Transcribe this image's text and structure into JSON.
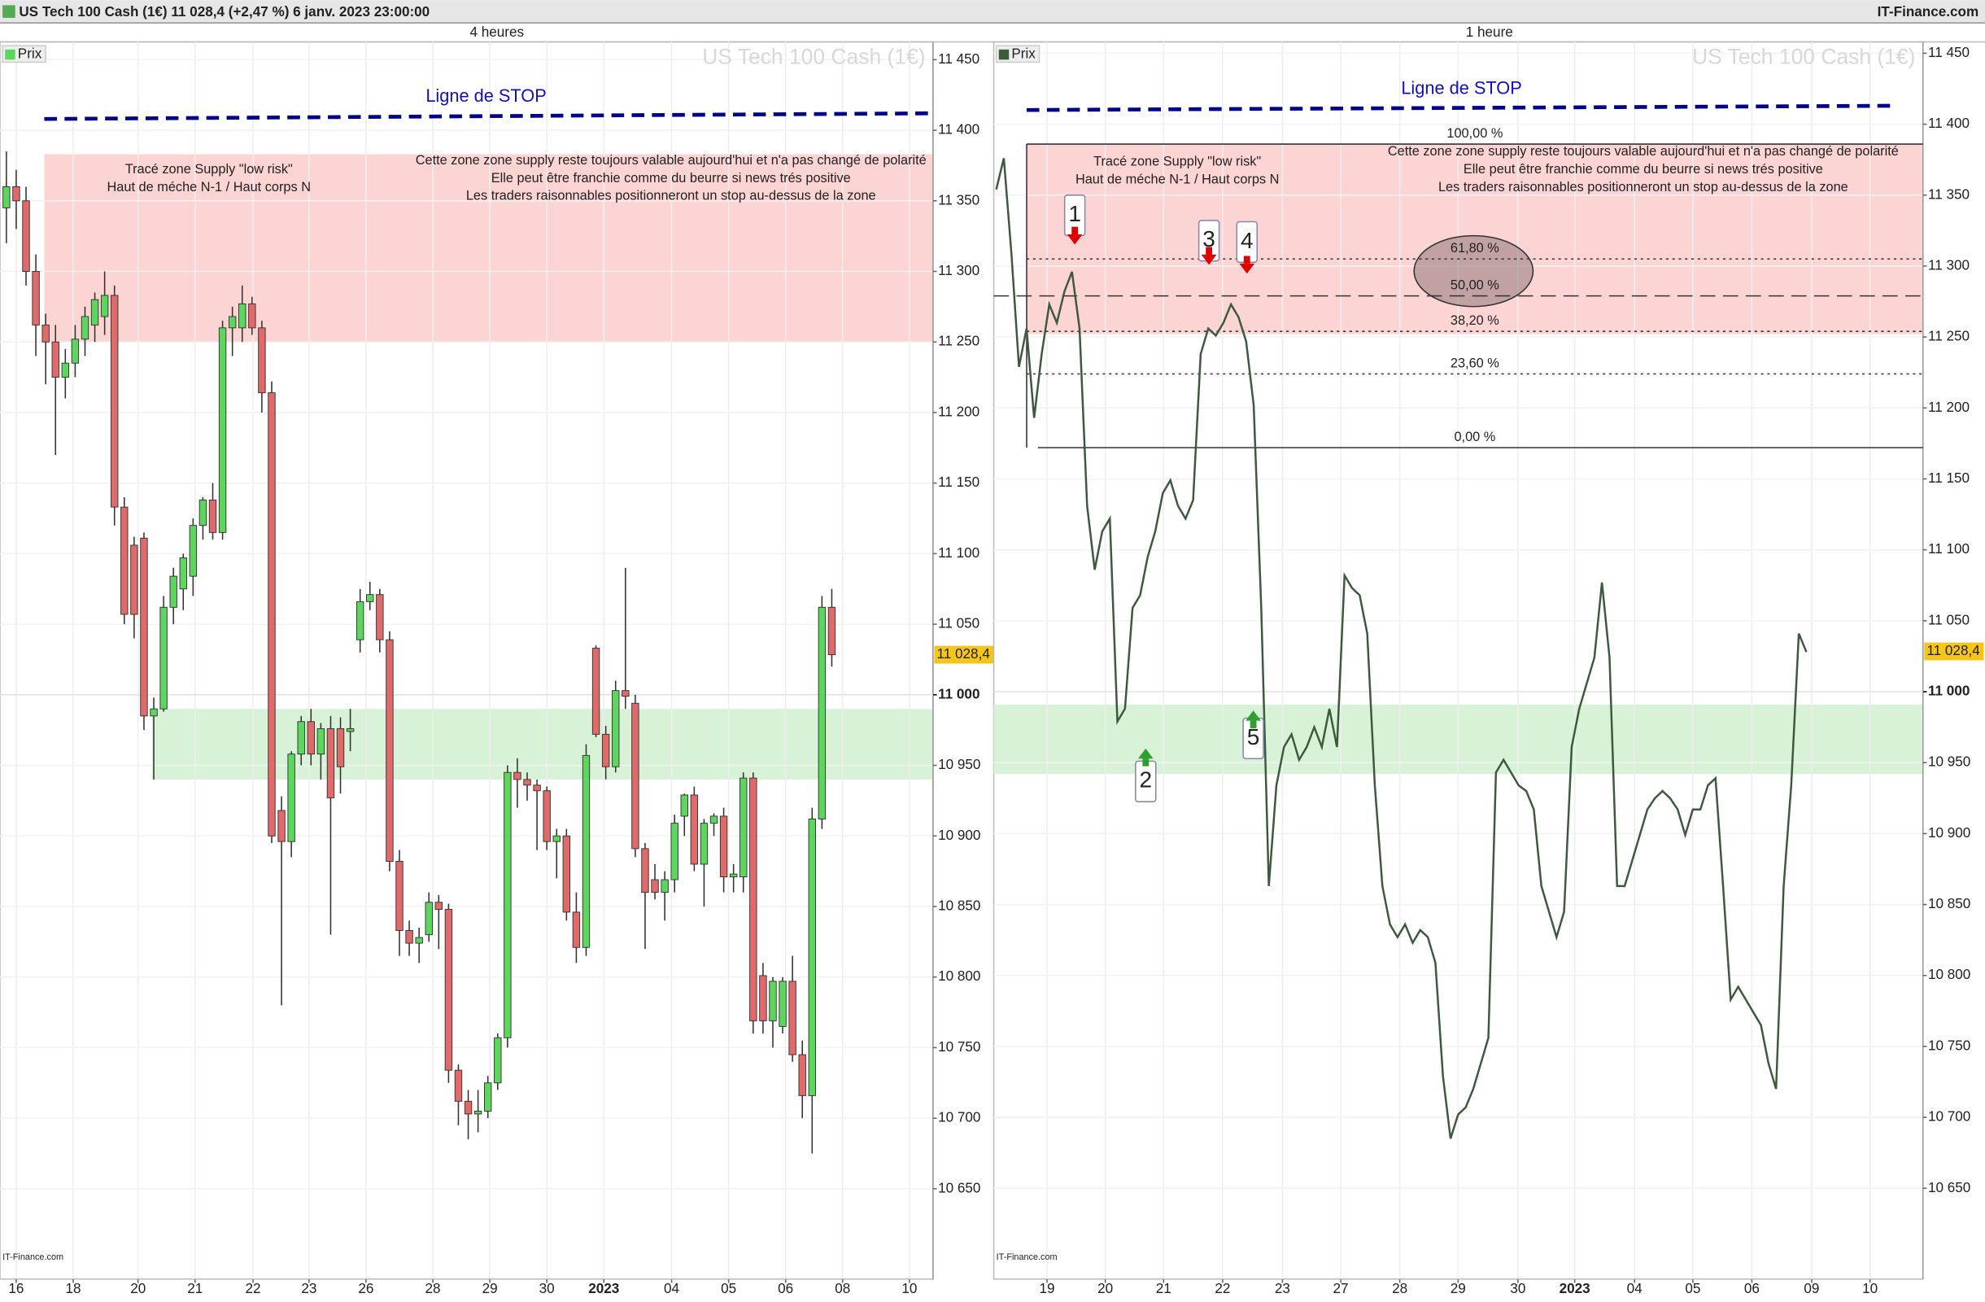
{
  "header": {
    "title": "US Tech 100 Cash (1€) 11 028,4 (+2,47 %) 6 janv. 2023 23:00:00",
    "brand": "IT-Finance.com"
  },
  "charts": [
    {
      "type": "candlestick",
      "timeframe": "4 heures",
      "legend": "Prix",
      "watermark": "US Tech 100 Cash (1€)",
      "source": "IT-Finance.com",
      "up_color": "#5cd65c",
      "down_color": "#e06a6a",
      "grid": true,
      "ylim": [
        10586,
        11462.6
      ],
      "yticks": [
        {
          "value": 11450,
          "label": "11 450"
        },
        {
          "value": 11400,
          "label": "11 400"
        },
        {
          "value": 11350,
          "label": "11 350"
        },
        {
          "value": 11300,
          "label": "11 300"
        },
        {
          "value": 11250,
          "label": "11 250"
        },
        {
          "value": 11200,
          "label": "11 200"
        },
        {
          "value": 11150,
          "label": "11 150"
        },
        {
          "value": 11100,
          "label": "11 100"
        },
        {
          "value": 11050,
          "label": "11 050"
        },
        {
          "value": 10950,
          "label": "10 950"
        },
        {
          "value": 10900,
          "label": "10 900"
        },
        {
          "value": 10850,
          "label": "10 850"
        },
        {
          "value": 10800,
          "label": "10 800"
        },
        {
          "value": 10750,
          "label": "10 750"
        },
        {
          "value": 10700,
          "label": "10 700"
        },
        {
          "value": 10650,
          "label": "10 650"
        }
      ],
      "reference_level": {
        "value": 11000,
        "label": "11 000"
      },
      "last_price": {
        "value": 11028.4,
        "label": "11 028,4"
      },
      "xlim": [
        -0.65,
        94.3
      ],
      "xticks": [
        {
          "value": 1,
          "label": "16"
        },
        {
          "value": 6.8,
          "label": "18"
        },
        {
          "value": 13.4,
          "label": "20"
        },
        {
          "value": 19.2,
          "label": "21"
        },
        {
          "value": 25.1,
          "label": "22"
        },
        {
          "value": 30.8,
          "label": "23"
        },
        {
          "value": 36.6,
          "label": "26"
        },
        {
          "value": 43.4,
          "label": "28"
        },
        {
          "value": 49.2,
          "label": "29"
        },
        {
          "value": 55,
          "label": "30"
        },
        {
          "value": 60.8,
          "label": "2023"
        },
        {
          "value": 67.7,
          "label": "04"
        },
        {
          "value": 73.5,
          "label": "05"
        },
        {
          "value": 79.3,
          "label": "06"
        },
        {
          "value": 85.1,
          "label": "08"
        },
        {
          "value": 91.9,
          "label": "10"
        }
      ],
      "supply_zone": [
        11250,
        11383
      ],
      "demand_zone": [
        10940,
        10990
      ],
      "stop_line": {
        "label": "Ligne de STOP",
        "values": [
          11408,
          11412
        ]
      },
      "notes": [
        [
          "Tracé zone Supply \"low risk\"",
          "Haut de méche N-1 / Haut corps N"
        ],
        [
          "Cette zone zone supply reste toujours valable aujourd'hui et n'a pas changé de polarité",
          "Elle peut être franchie comme du beurre si news trés positive",
          "Les traders raisonnables positionneront un stop au-dessus de la zone"
        ]
      ],
      "ohlc": [
        [
          11345,
          11385,
          11320,
          11360
        ],
        [
          11360,
          11372,
          11330,
          11350
        ],
        [
          11350,
          11360,
          11290,
          11300
        ],
        [
          11300,
          11312,
          11240,
          11262
        ],
        [
          11262,
          11270,
          11220,
          11250
        ],
        [
          11250,
          11262,
          11170,
          11225
        ],
        [
          11225,
          11245,
          11210,
          11235
        ],
        [
          11235,
          11262,
          11225,
          11252
        ],
        [
          11252,
          11275,
          11240,
          11268
        ],
        [
          11262,
          11285,
          11250,
          11280
        ],
        [
          11268,
          11300,
          11255,
          11283
        ],
        [
          11283,
          11290,
          11120,
          11133
        ],
        [
          11133,
          11140,
          11050,
          11057
        ],
        [
          11106,
          11112,
          11040,
          11057
        ],
        [
          11111,
          11115,
          10975,
          10985
        ],
        [
          10985,
          10998,
          10940,
          10990
        ],
        [
          10990,
          11070,
          10988,
          11062
        ],
        [
          11062,
          11090,
          11050,
          11084
        ],
        [
          11075,
          11100,
          11060,
          11097
        ],
        [
          11084,
          11125,
          11070,
          11120
        ],
        [
          11120,
          11140,
          11110,
          11138
        ],
        [
          11138,
          11150,
          11110,
          11115
        ],
        [
          11115,
          11265,
          11110,
          11260
        ],
        [
          11260,
          11275,
          11240,
          11268
        ],
        [
          11260,
          11290,
          11250,
          11277
        ],
        [
          11277,
          11282,
          11255,
          11260
        ],
        [
          11260,
          11265,
          11200,
          11214
        ],
        [
          11214,
          11222,
          10895,
          10900
        ],
        [
          10918,
          10928,
          10780,
          10896
        ],
        [
          10896,
          10960,
          10885,
          10958
        ],
        [
          10958,
          10985,
          10950,
          10981
        ],
        [
          10981,
          10990,
          10950,
          10958
        ],
        [
          10958,
          10980,
          10940,
          10976
        ],
        [
          10976,
          10985,
          10830,
          10927
        ],
        [
          10976,
          10984,
          10930,
          10949
        ],
        [
          10974,
          10990,
          10960,
          10976
        ],
        [
          11039,
          11075,
          11030,
          11066
        ],
        [
          11066,
          11080,
          11060,
          11071
        ],
        [
          11071,
          11075,
          11030,
          11039
        ],
        [
          11039,
          11045,
          10875,
          10882
        ],
        [
          10882,
          10890,
          10815,
          10833
        ],
        [
          10833,
          10840,
          10815,
          10824
        ],
        [
          10824,
          10835,
          10810,
          10828
        ],
        [
          10830,
          10860,
          10825,
          10853
        ],
        [
          10853,
          10858,
          10820,
          10848
        ],
        [
          10848,
          10852,
          10725,
          10734
        ],
        [
          10734,
          10738,
          10695,
          10712
        ],
        [
          10712,
          10720,
          10685,
          10703
        ],
        [
          10703,
          10720,
          10690,
          10705
        ],
        [
          10705,
          10730,
          10700,
          10725
        ],
        [
          10725,
          10760,
          10720,
          10757
        ],
        [
          10757,
          10950,
          10750,
          10945
        ],
        [
          10945,
          10955,
          10920,
          10940
        ],
        [
          10940,
          10945,
          10925,
          10936
        ],
        [
          10936,
          10940,
          10890,
          10932
        ],
        [
          10932,
          10935,
          10890,
          10896
        ],
        [
          10896,
          10905,
          10870,
          10900
        ],
        [
          10900,
          10905,
          10840,
          10846
        ],
        [
          10846,
          10860,
          10810,
          10821
        ],
        [
          10821,
          10965,
          10815,
          10957
        ],
        [
          11033,
          11035,
          10970,
          10972
        ],
        [
          10972,
          10978,
          10940,
          10949
        ],
        [
          10949,
          11010,
          10945,
          11003
        ],
        [
          11003,
          11090,
          10990,
          10999
        ],
        [
          10994,
          11000,
          10885,
          10891
        ],
        [
          10891,
          10895,
          10820,
          10860
        ],
        [
          10869,
          10880,
          10855,
          10860
        ],
        [
          10860,
          10875,
          10840,
          10869
        ],
        [
          10869,
          10915,
          10860,
          10909
        ],
        [
          10914,
          10930,
          10900,
          10929
        ],
        [
          10929,
          10935,
          10875,
          10880
        ],
        [
          10880,
          10912,
          10850,
          10909
        ],
        [
          10909,
          10916,
          10900,
          10914
        ],
        [
          10914,
          10920,
          10860,
          10871
        ],
        [
          10871,
          10880,
          10860,
          10873
        ],
        [
          10871,
          10945,
          10860,
          10941
        ],
        [
          10941,
          10945,
          10760,
          10769
        ],
        [
          10801,
          10810,
          10760,
          10769
        ],
        [
          10769,
          10800,
          10750,
          10797
        ],
        [
          10765,
          10800,
          10760,
          10797
        ],
        [
          10797,
          10815,
          10740,
          10745
        ],
        [
          10745,
          10755,
          10700,
          10716
        ],
        [
          10716,
          10920,
          10675,
          10912
        ],
        [
          10912,
          11070,
          10905,
          11062
        ],
        [
          11062,
          11075,
          11020,
          11028.4
        ]
      ]
    },
    {
      "type": "line",
      "timeframe": "1 heure",
      "legend": "Prix",
      "watermark": "US Tech 100 Cash (1€)",
      "source": "IT-Finance.com",
      "color": "#3d5a3d",
      "grid": true,
      "ylim": [
        10586,
        11458
      ],
      "yticks": [
        {
          "value": 11450,
          "label": "11 450"
        },
        {
          "value": 11400,
          "label": "11 400"
        },
        {
          "value": 11350,
          "label": "11 350"
        },
        {
          "value": 11300,
          "label": "11 300"
        },
        {
          "value": 11250,
          "label": "11 250"
        },
        {
          "value": 11200,
          "label": "11 200"
        },
        {
          "value": 11150,
          "label": "11 150"
        },
        {
          "value": 11100,
          "label": "11 100"
        },
        {
          "value": 11050,
          "label": "11 050"
        },
        {
          "value": 10950,
          "label": "10 950"
        },
        {
          "value": 10900,
          "label": "10 900"
        },
        {
          "value": 10850,
          "label": "10 850"
        },
        {
          "value": 10800,
          "label": "10 800"
        },
        {
          "value": 10750,
          "label": "10 750"
        },
        {
          "value": 10700,
          "label": "10 700"
        },
        {
          "value": 10650,
          "label": "10 650"
        }
      ],
      "reference_level": {
        "value": 11000,
        "label": "11 000"
      },
      "last_price": {
        "value": 11028.4,
        "label": "11 028,4"
      },
      "xlim": [
        -0.33,
        122.4
      ],
      "xticks": [
        {
          "value": 6.7,
          "label": "19"
        },
        {
          "value": 14.4,
          "label": "20"
        },
        {
          "value": 22.1,
          "label": "21"
        },
        {
          "value": 29.9,
          "label": "22"
        },
        {
          "value": 37.8,
          "label": "23"
        },
        {
          "value": 45.5,
          "label": "27"
        },
        {
          "value": 53.3,
          "label": "28"
        },
        {
          "value": 61,
          "label": "29"
        },
        {
          "value": 68.9,
          "label": "30"
        },
        {
          "value": 76.4,
          "label": "2023"
        },
        {
          "value": 84.3,
          "label": "04"
        },
        {
          "value": 92,
          "label": "05"
        },
        {
          "value": 99.8,
          "label": "06"
        },
        {
          "value": 107.7,
          "label": "09"
        },
        {
          "value": 115.4,
          "label": "10"
        }
      ],
      "supply_zone": [
        11252,
        11386
      ],
      "demand_zone": [
        10942,
        10991
      ],
      "stop_line": {
        "label": "Ligne de STOP",
        "values": [
          11410,
          11413
        ]
      },
      "fibonacci": [
        {
          "value": 11386,
          "label": "100,00 %"
        },
        {
          "value": 11305,
          "label": "61,80 %"
        },
        {
          "value": 11279,
          "label": "50,00 %"
        },
        {
          "value": 11254,
          "label": "38,20 %"
        },
        {
          "value": 11224,
          "label": "23,60 %"
        },
        {
          "value": 11172,
          "label": "0,00 %"
        }
      ],
      "markers": [
        {
          "label": "1",
          "color": "#e00000"
        },
        {
          "label": "2",
          "color": "#2f9e2f"
        },
        {
          "label": "3",
          "color": "#e00000"
        },
        {
          "label": "4",
          "color": "#e00000"
        },
        {
          "label": "5",
          "color": "#2f9e2f"
        }
      ],
      "notes": [
        [
          "Tracé zone Supply \"low risk\"",
          "Haut de méche N-1 / Haut corps N"
        ],
        [
          "Cette zone zone supply reste toujours valable aujourd'hui et n'a pas changé de polarité",
          "Elle peut être franchie comme du beurre si news trés positive",
          "Les traders raisonnables positionneront un stop au-dessus de la zone"
        ]
      ],
      "x": [
        0,
        1,
        2,
        3,
        4,
        5,
        6,
        7,
        8,
        9,
        10,
        11,
        12,
        13,
        14,
        15,
        16,
        17,
        18,
        19,
        20,
        21,
        22,
        23,
        24,
        25,
        26,
        27,
        28,
        29,
        30,
        31,
        32,
        33,
        34,
        35,
        36,
        37,
        38,
        39,
        40,
        41,
        42,
        43,
        44,
        45,
        46,
        47,
        48,
        49,
        50,
        51,
        52,
        53,
        54,
        55,
        56,
        57,
        58,
        59,
        60,
        61,
        62,
        63,
        64,
        65,
        66,
        67,
        68,
        69,
        70,
        71,
        72,
        73,
        74,
        75,
        76,
        77,
        78,
        79,
        80,
        81,
        82,
        83,
        84,
        85,
        86,
        87,
        88,
        89,
        90,
        91,
        92,
        93,
        94,
        95,
        96,
        97,
        98,
        99,
        100,
        101,
        102,
        103,
        104,
        105,
        106,
        107
      ],
      "values": [
        11354,
        11376,
        11309,
        11229,
        11256,
        11193,
        11238,
        11273,
        11260,
        11282,
        11296,
        11256,
        11131,
        11086,
        11113,
        11122,
        10979,
        10988,
        11059,
        11068,
        11095,
        11113,
        11140,
        11149,
        11131,
        11122,
        11135,
        11238,
        11256,
        11251,
        11260,
        11273,
        11264,
        11247,
        11202,
        11059,
        10863,
        10934,
        10961,
        10970,
        10952,
        10961,
        10975,
        10961,
        10988,
        10961,
        11082,
        11073,
        11068,
        11041,
        10934,
        10863,
        10836,
        10827,
        10836,
        10823,
        10832,
        10827,
        10809,
        10729,
        10685,
        10702,
        10707,
        10720,
        10738,
        10756,
        10943,
        10952,
        10943,
        10934,
        10930,
        10917,
        10863,
        10845,
        10827,
        10845,
        10961,
        10988,
        11006,
        11024,
        11077,
        11024,
        10863,
        10863,
        10881,
        10899,
        10917,
        10925,
        10930,
        10925,
        10917,
        10899,
        10917,
        10917,
        10934,
        10939,
        10863,
        10783,
        10792,
        10783,
        10774,
        10765,
        10738,
        10720,
        10863,
        10934,
        11041,
        11028
      ]
    }
  ]
}
